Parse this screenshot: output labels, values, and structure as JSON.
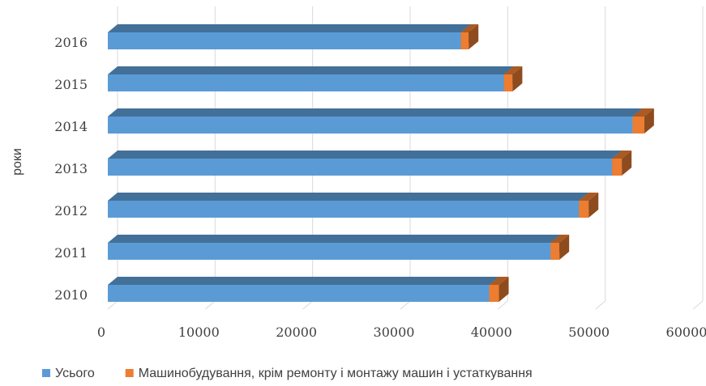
{
  "chart_data": {
    "type": "bar",
    "orientation": "horizontal",
    "stacked": true,
    "style": "3d",
    "ylabel": "роки",
    "xlabel": "",
    "xlim": [
      0,
      60000
    ],
    "xticks": [
      0,
      10000,
      20000,
      30000,
      40000,
      50000,
      60000
    ],
    "xtick_labels": [
      "0",
      "10000",
      "20000",
      "30000",
      "40000",
      "50000",
      "60000"
    ],
    "grid": true,
    "legend_position": "bottom",
    "categories": [
      "2016",
      "2015",
      "2014",
      "2013",
      "2012",
      "2011",
      "2010"
    ],
    "series": [
      {
        "name": "Усього",
        "color": "#5B9BD5",
        "values": [
          36200,
          40600,
          53800,
          51700,
          48300,
          45400,
          39100
        ]
      },
      {
        "name": "Машинобудування, крім ремонту і монтажу машин і устаткування",
        "color": "#ED7D31",
        "values": [
          800,
          900,
          1200,
          1000,
          1000,
          900,
          1000
        ]
      }
    ]
  }
}
